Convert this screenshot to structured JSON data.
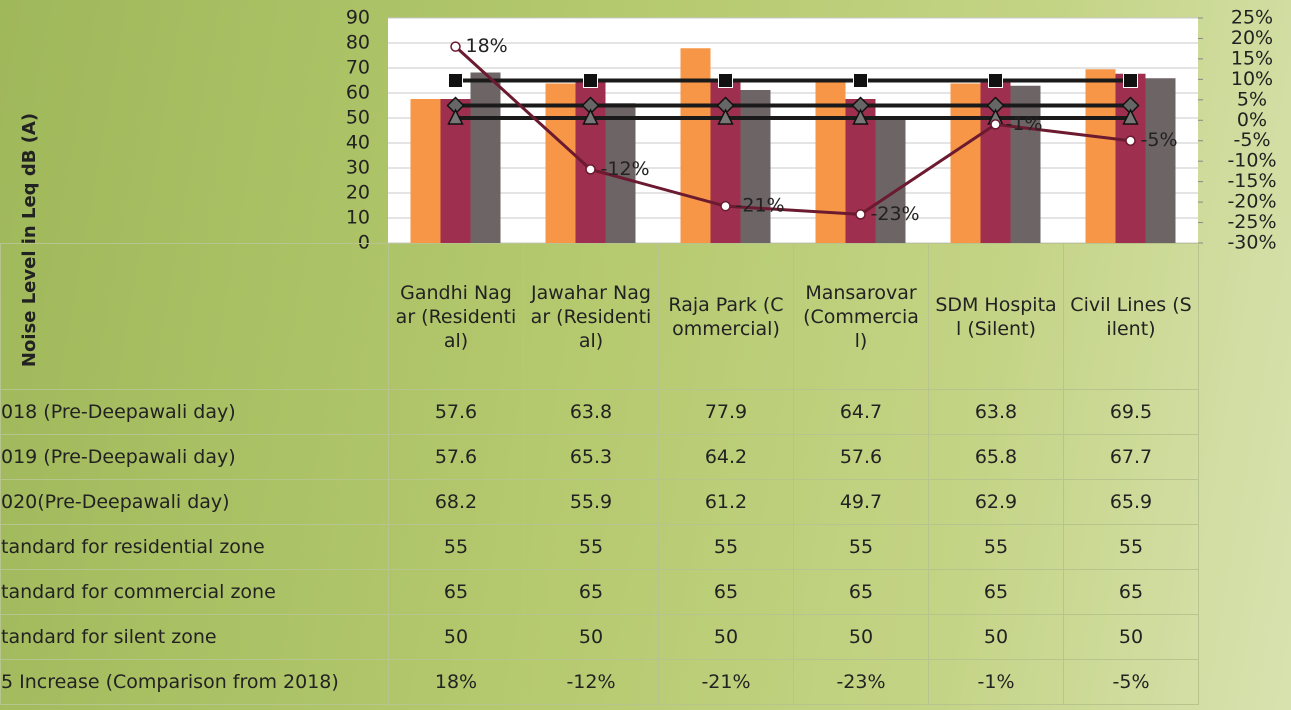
{
  "chart_data": {
    "type": "bar",
    "y_label": "Noise Level in Leq dB (A)",
    "categories": [
      "Gandhi Nagar (Residential)",
      "Jawahar Nagar (Residential)",
      "Raja Park (Commercial)",
      "Mansarovar (Commercial)",
      "SDM Hospital (Silent)",
      "Civil Lines (Silent)"
    ],
    "ylim": [
      0,
      90
    ],
    "yticks": [
      0,
      10,
      20,
      30,
      40,
      50,
      60,
      70,
      80,
      90
    ],
    "y2lim": [
      -30,
      25
    ],
    "y2ticks": [
      {
        "value": -30,
        "label": "-30%"
      },
      {
        "value": -25,
        "label": "-25%"
      },
      {
        "value": -20,
        "label": "-20%"
      },
      {
        "value": -15,
        "label": "-15%"
      },
      {
        "value": -10,
        "label": "-10%"
      },
      {
        "value": -5,
        "label": "-5%"
      },
      {
        "value": 0,
        "label": "0%"
      },
      {
        "value": 5,
        "label": "5%"
      },
      {
        "value": 10,
        "label": "10%"
      },
      {
        "value": 15,
        "label": "15%"
      },
      {
        "value": 20,
        "label": "20%"
      },
      {
        "value": 25,
        "label": "25%"
      }
    ],
    "grid": true,
    "series": [
      {
        "name": "018 (Pre-Deepawali day)",
        "color": "#f79646",
        "values": [
          57.6,
          63.8,
          77.9,
          64.7,
          63.8,
          69.5
        ]
      },
      {
        "name": "019 (Pre-Deepawali day)",
        "color": "#9e2f4f",
        "values": [
          57.6,
          65.3,
          64.2,
          57.6,
          65.8,
          67.7
        ]
      },
      {
        "name": "020(Pre-Deepawali day)",
        "color": "#6d6466",
        "values": [
          68.2,
          55.9,
          61.2,
          49.7,
          62.9,
          65.9
        ]
      },
      {
        "name": "tandard for residential zone",
        "type": "line",
        "marker": "diamond",
        "color": "#1a1a1a",
        "values": [
          55,
          55,
          55,
          55,
          55,
          55
        ]
      },
      {
        "name": "tandard for commercial zone",
        "type": "line",
        "marker": "square",
        "color": "#1a1a1a",
        "values": [
          65,
          65,
          65,
          65,
          65,
          65
        ]
      },
      {
        "name": "tandard for silent zone",
        "type": "line",
        "marker": "triangle",
        "color": "#1a1a1a",
        "values": [
          50,
          50,
          50,
          50,
          50,
          50
        ]
      },
      {
        "name": "5 Increase (Comparison from 2018)",
        "type": "line",
        "axis": "y2",
        "marker": "circle",
        "color": "#6b1a30",
        "values": [
          18,
          -12,
          -21,
          -23,
          -1,
          -5
        ],
        "value_labels": [
          "18%",
          "-12%",
          "-21%",
          "-23%",
          "-1%",
          "-5%"
        ]
      }
    ]
  }
}
